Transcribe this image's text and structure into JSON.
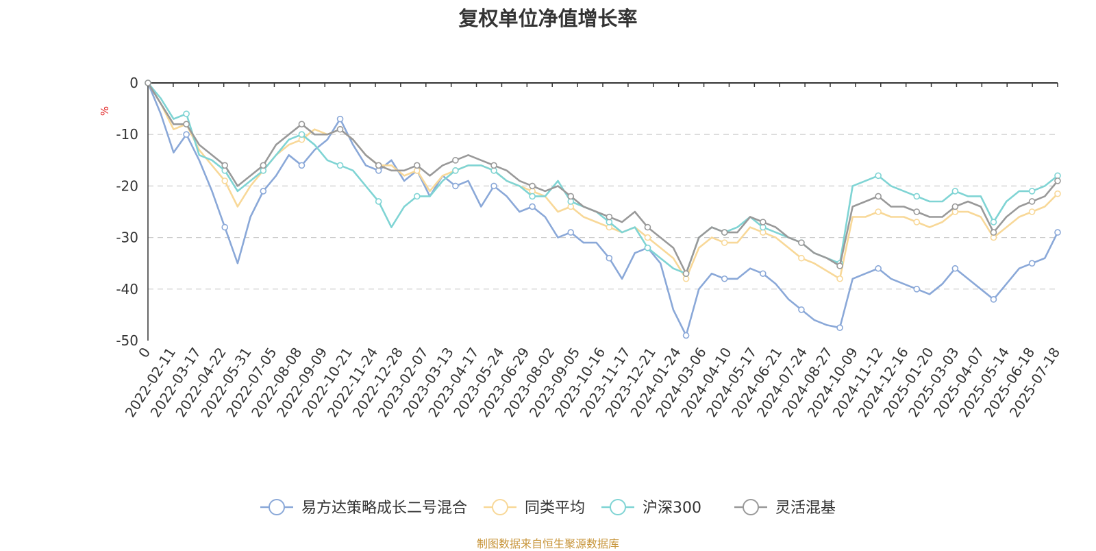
{
  "title": "复权单位净值增长率",
  "source_note": "制图数据来自恒生聚源数据库",
  "colors": {
    "source_note": "#c8963c",
    "unit": "#e02020"
  },
  "chart_data": {
    "type": "line",
    "title": "复权单位净值增长率",
    "ylabel": "%",
    "ylim": [
      -50,
      0
    ],
    "yticks": [
      0,
      -10,
      -20,
      -30,
      -40,
      -50
    ],
    "grid": true,
    "legend_position": "bottom",
    "x_start_label": "0",
    "x_tick_labels": [
      "2022-02-11",
      "2022-03-17",
      "2022-04-22",
      "2022-05-31",
      "2022-07-05",
      "2022-08-08",
      "2022-09-09",
      "2022-10-21",
      "2022-11-24",
      "2022-12-28",
      "2023-02-07",
      "2023-03-13",
      "2023-04-17",
      "2023-05-24",
      "2023-06-29",
      "2023-08-02",
      "2023-09-05",
      "2023-10-16",
      "2023-11-17",
      "2023-12-21",
      "2024-01-24",
      "2024-03-06",
      "2024-04-10",
      "2024-05-17",
      "2024-06-21",
      "2024-07-24",
      "2024-08-27",
      "2024-10-09",
      "2024-11-12",
      "2024-12-16",
      "2025-01-20",
      "2025-03-03",
      "2025-04-07",
      "2025-05-14",
      "2025-06-18",
      "2025-07-18"
    ],
    "series": [
      {
        "name": "易方达策略成长二号混合",
        "color": "#8aa8d8",
        "values": [
          0,
          -6,
          -13.5,
          -10,
          -15,
          -21,
          -28,
          -35,
          -26,
          -21,
          -18,
          -14,
          -16,
          -13,
          -11,
          -7,
          -12,
          -16,
          -17,
          -15,
          -19,
          -17,
          -22,
          -18,
          -20,
          -19,
          -24,
          -20,
          -22,
          -25,
          -24,
          -26,
          -30,
          -29,
          -31,
          -31,
          -34,
          -38,
          -33,
          -32,
          -35,
          -44,
          -49,
          -40,
          -37,
          -38,
          -38,
          -36,
          -37,
          -39,
          -42,
          -44,
          -46,
          -47,
          -47.5,
          -38,
          -37,
          -36,
          -38,
          -39,
          -40,
          -41,
          -39,
          -36,
          -38,
          -40,
          -42,
          -39,
          -36,
          -35,
          -34,
          -29
        ]
      },
      {
        "name": "同类平均",
        "color": "#f8d898",
        "values": [
          0,
          -4,
          -9,
          -8,
          -13,
          -16,
          -19,
          -24,
          -20,
          -17,
          -14,
          -12,
          -11,
          -9,
          -10,
          -9,
          -11,
          -14,
          -16,
          -16,
          -18,
          -17,
          -21,
          -18,
          -17,
          -16,
          -16,
          -17,
          -19,
          -20,
          -21,
          -22,
          -25,
          -24,
          -26,
          -27,
          -28,
          -29,
          -28,
          -30,
          -32,
          -34,
          -38,
          -32,
          -30,
          -31,
          -31,
          -28,
          -29,
          -30,
          -32,
          -34,
          -35,
          -36.5,
          -38,
          -26,
          -26,
          -25,
          -26,
          -26,
          -27,
          -28,
          -27,
          -25,
          -25,
          -26,
          -30,
          -28,
          -26,
          -25,
          -24,
          -21.5
        ]
      },
      {
        "name": "沪深300",
        "color": "#7fd4d4",
        "values": [
          0,
          -3,
          -7,
          -6,
          -14,
          -15,
          -17,
          -21,
          -19,
          -17,
          -14,
          -11,
          -10,
          -12,
          -15,
          -16,
          -17,
          -20,
          -23,
          -28,
          -24,
          -22,
          -22,
          -19,
          -17,
          -16,
          -16,
          -17,
          -19,
          -20,
          -22,
          -22,
          -19,
          -23,
          -24,
          -25,
          -27,
          -29,
          -28,
          -32,
          -34,
          -36,
          -37,
          -30,
          -28,
          -29,
          -28,
          -26,
          -28,
          -29,
          -30,
          -31,
          -33,
          -34,
          -35,
          -20,
          -19,
          -18,
          -20,
          -21,
          -22,
          -23,
          -23,
          -21,
          -22,
          -22,
          -27,
          -23,
          -21,
          -21,
          -20,
          -18
        ]
      },
      {
        "name": "灵活混基",
        "color": "#999999",
        "values": [
          0,
          -4,
          -8,
          -8,
          -12,
          -14,
          -16,
          -20,
          -18,
          -16,
          -12,
          -10,
          -8,
          -10,
          -10,
          -9,
          -11,
          -14,
          -16,
          -17,
          -17,
          -16,
          -18,
          -16,
          -15,
          -14,
          -15,
          -16,
          -17,
          -19,
          -20,
          -21,
          -20,
          -22,
          -24,
          -25,
          -26,
          -27,
          -25,
          -28,
          -30,
          -32,
          -37,
          -30,
          -28,
          -29,
          -29,
          -26,
          -27,
          -28,
          -30,
          -31,
          -33,
          -34,
          -35.5,
          -24,
          -23,
          -22,
          -24,
          -24,
          -25,
          -26,
          -26,
          -24,
          -23,
          -24,
          -29,
          -26,
          -24,
          -23,
          -22,
          -19
        ]
      }
    ]
  }
}
